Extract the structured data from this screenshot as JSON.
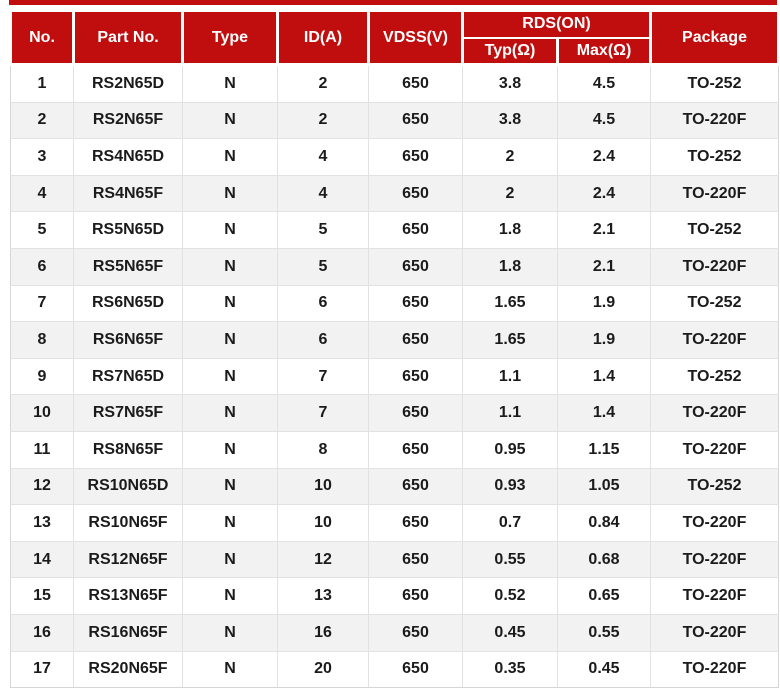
{
  "colors": {
    "header_red": "#c00d0d",
    "row_alt_gray": "#f2f2f2",
    "grid_line": "#e2e2e2",
    "body_text": "#1b1b1b"
  },
  "table": {
    "header": {
      "no": "No.",
      "part_no": "Part No.",
      "type": "Type",
      "id_a": "ID(A)",
      "vdss_v": "VDSS(V)",
      "rds_on": "RDS(ON)",
      "typ_ohm": "Typ(Ω)",
      "max_ohm": "Max(Ω)",
      "package": "Package"
    },
    "rows": [
      [
        "1",
        "RS2N65D",
        "N",
        "2",
        "650",
        "3.8",
        "4.5",
        "TO-252"
      ],
      [
        "2",
        "RS2N65F",
        "N",
        "2",
        "650",
        "3.8",
        "4.5",
        "TO-220F"
      ],
      [
        "3",
        "RS4N65D",
        "N",
        "4",
        "650",
        "2",
        "2.4",
        "TO-252"
      ],
      [
        "4",
        "RS4N65F",
        "N",
        "4",
        "650",
        "2",
        "2.4",
        "TO-220F"
      ],
      [
        "5",
        "RS5N65D",
        "N",
        "5",
        "650",
        "1.8",
        "2.1",
        "TO-252"
      ],
      [
        "6",
        "RS5N65F",
        "N",
        "5",
        "650",
        "1.8",
        "2.1",
        "TO-220F"
      ],
      [
        "7",
        "RS6N65D",
        "N",
        "6",
        "650",
        "1.65",
        "1.9",
        "TO-252"
      ],
      [
        "8",
        "RS6N65F",
        "N",
        "6",
        "650",
        "1.65",
        "1.9",
        "TO-220F"
      ],
      [
        "9",
        "RS7N65D",
        "N",
        "7",
        "650",
        "1.1",
        "1.4",
        "TO-252"
      ],
      [
        "10",
        "RS7N65F",
        "N",
        "7",
        "650",
        "1.1",
        "1.4",
        "TO-220F"
      ],
      [
        "11",
        "RS8N65F",
        "N",
        "8",
        "650",
        "0.95",
        "1.15",
        "TO-220F"
      ],
      [
        "12",
        "RS10N65D",
        "N",
        "10",
        "650",
        "0.93",
        "1.05",
        "TO-252"
      ],
      [
        "13",
        "RS10N65F",
        "N",
        "10",
        "650",
        "0.7",
        "0.84",
        "TO-220F"
      ],
      [
        "14",
        "RS12N65F",
        "N",
        "12",
        "650",
        "0.55",
        "0.68",
        "TO-220F"
      ],
      [
        "15",
        "RS13N65F",
        "N",
        "13",
        "650",
        "0.52",
        "0.65",
        "TO-220F"
      ],
      [
        "16",
        "RS16N65F",
        "N",
        "16",
        "650",
        "0.45",
        "0.55",
        "TO-220F"
      ],
      [
        "17",
        "RS20N65F",
        "N",
        "20",
        "650",
        "0.35",
        "0.45",
        "TO-220F"
      ]
    ]
  }
}
